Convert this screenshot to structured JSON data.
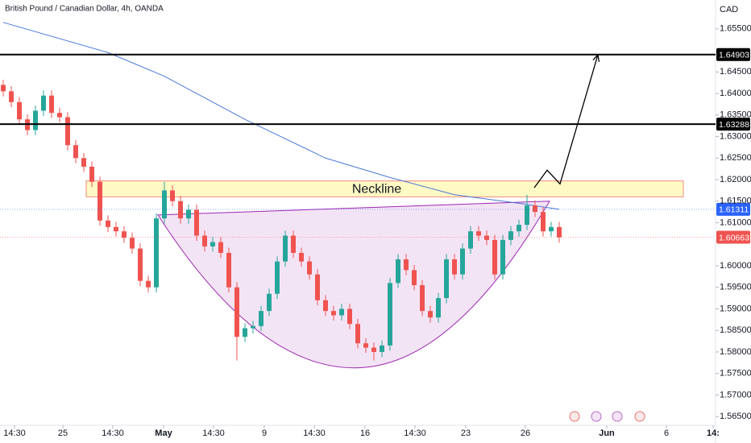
{
  "chart_data": {
    "type": "candlestick",
    "title": "British Pound / Canadian Dollar, 4h, OANDA",
    "y_axis_label": "CAD",
    "up_color": "#26a69a",
    "down_color": "#ef5350",
    "grid": false,
    "ylim": [
      1.5626,
      1.6617
    ],
    "xlim": [
      -0.4,
      88.6
    ],
    "yticks": [
      {
        "value": 1.655,
        "label": "1.65500"
      },
      {
        "value": 1.645,
        "label": "1.64500"
      },
      {
        "value": 1.64,
        "label": "1.64000"
      },
      {
        "value": 1.635,
        "label": "1.63500"
      },
      {
        "value": 1.63,
        "label": "1.63000"
      },
      {
        "value": 1.625,
        "label": "1.62500"
      },
      {
        "value": 1.62,
        "label": "1.62000"
      },
      {
        "value": 1.615,
        "label": "1.61500"
      },
      {
        "value": 1.61,
        "label": "1.61000"
      },
      {
        "value": 1.6,
        "label": "1.60000"
      },
      {
        "value": 1.595,
        "label": "1.59500"
      },
      {
        "value": 1.59,
        "label": "1.59000"
      },
      {
        "value": 1.585,
        "label": "1.58500"
      },
      {
        "value": 1.58,
        "label": "1.58000"
      },
      {
        "value": 1.575,
        "label": "1.57500"
      },
      {
        "value": 1.57,
        "label": "1.57000"
      },
      {
        "value": 1.565,
        "label": "1.56500"
      }
    ],
    "xticks": [
      {
        "value": 1.4,
        "label": "14:30"
      },
      {
        "value": 7.4,
        "label": "25"
      },
      {
        "value": 13.6,
        "label": "14:30"
      },
      {
        "value": 19.9,
        "label": "May"
      },
      {
        "value": 26.1,
        "label": "14:30"
      },
      {
        "value": 32.4,
        "label": "9"
      },
      {
        "value": 38.6,
        "label": "14:30"
      },
      {
        "value": 44.9,
        "label": "16"
      },
      {
        "value": 51.1,
        "label": "14:30"
      },
      {
        "value": 57.4,
        "label": "23"
      },
      {
        "value": 64.8,
        "label": "26"
      },
      {
        "value": 74.9,
        "label": "Jun"
      },
      {
        "value": 82.3,
        "label": "6"
      },
      {
        "value": 88.1,
        "label": "14:"
      }
    ],
    "open": [
      1.642,
      1.6405,
      1.638,
      1.634,
      1.6315,
      1.636,
      1.6395,
      1.6355,
      1.6345,
      1.628,
      1.625,
      1.623,
      1.6195,
      1.6105,
      1.609,
      1.608,
      1.6065,
      1.604,
      1.5965,
      1.595,
      1.611,
      1.6175,
      1.615,
      1.611,
      1.613,
      1.607,
      1.6045,
      1.6055,
      1.603,
      1.595,
      1.5835,
      1.5855,
      1.586,
      1.5895,
      1.5935,
      1.601,
      1.607,
      1.603,
      1.601,
      1.598,
      1.592,
      1.5895,
      1.5885,
      1.59,
      1.5865,
      1.582,
      1.581,
      1.58,
      1.5815,
      1.596,
      1.6015,
      1.599,
      1.5955,
      1.5895,
      1.588,
      1.5925,
      1.6015,
      1.598,
      1.604,
      1.608,
      1.607,
      1.606,
      1.598,
      1.606,
      1.608,
      1.6095,
      1.614,
      1.6125,
      1.608,
      1.609
    ],
    "high": [
      1.6432,
      1.6417,
      1.6392,
      1.6352,
      1.6372,
      1.6407,
      1.6407,
      1.6367,
      1.6357,
      1.6292,
      1.6262,
      1.6242,
      1.6207,
      1.6117,
      1.6102,
      1.6092,
      1.6077,
      1.6052,
      1.5977,
      1.6122,
      1.6195,
      1.6187,
      1.6162,
      1.6142,
      1.6142,
      1.6082,
      1.6067,
      1.6067,
      1.6042,
      1.5962,
      1.5867,
      1.5872,
      1.5907,
      1.5947,
      1.6022,
      1.6082,
      1.6082,
      1.6042,
      1.6022,
      1.5992,
      1.5932,
      1.5907,
      1.5912,
      1.5912,
      1.5877,
      1.5832,
      1.5822,
      1.5827,
      1.5972,
      1.6027,
      1.6027,
      1.6002,
      1.5967,
      1.5907,
      1.5937,
      1.6027,
      1.6027,
      1.6052,
      1.6092,
      1.6092,
      1.6082,
      1.6072,
      1.6072,
      1.6092,
      1.6107,
      1.6165,
      1.6152,
      1.6137,
      1.6102,
      1.6102
    ],
    "low": [
      1.6393,
      1.6368,
      1.6328,
      1.6303,
      1.6303,
      1.6348,
      1.6343,
      1.6333,
      1.6268,
      1.6238,
      1.6218,
      1.6183,
      1.6093,
      1.6078,
      1.6068,
      1.6053,
      1.6028,
      1.5953,
      1.5938,
      1.5938,
      1.6098,
      1.6138,
      1.6098,
      1.6098,
      1.6058,
      1.6033,
      1.6033,
      1.6018,
      1.5938,
      1.578,
      1.5823,
      1.5843,
      1.5848,
      1.5883,
      1.5923,
      1.5998,
      1.6018,
      1.5998,
      1.5968,
      1.5908,
      1.5883,
      1.5873,
      1.5873,
      1.5853,
      1.5808,
      1.5798,
      1.578,
      1.5788,
      1.5803,
      1.5948,
      1.5978,
      1.5943,
      1.5883,
      1.5868,
      1.5868,
      1.5913,
      1.5968,
      1.5968,
      1.6028,
      1.6058,
      1.6048,
      1.5968,
      1.5968,
      1.6048,
      1.6068,
      1.6083,
      1.6113,
      1.6068,
      1.6068,
      1.6054
    ],
    "close": [
      1.6405,
      1.638,
      1.634,
      1.6315,
      1.636,
      1.6395,
      1.6355,
      1.6345,
      1.628,
      1.625,
      1.623,
      1.6195,
      1.6105,
      1.609,
      1.608,
      1.6065,
      1.604,
      1.5965,
      1.595,
      1.611,
      1.6175,
      1.615,
      1.611,
      1.613,
      1.607,
      1.6045,
      1.6055,
      1.603,
      1.595,
      1.5835,
      1.5855,
      1.586,
      1.5895,
      1.5935,
      1.601,
      1.607,
      1.603,
      1.601,
      1.598,
      1.592,
      1.5895,
      1.5885,
      1.59,
      1.5865,
      1.582,
      1.581,
      1.58,
      1.5815,
      1.596,
      1.6015,
      1.599,
      1.5955,
      1.5895,
      1.588,
      1.5925,
      1.6015,
      1.598,
      1.604,
      1.608,
      1.607,
      1.606,
      1.598,
      1.606,
      1.608,
      1.6095,
      1.614,
      1.6125,
      1.608,
      1.609,
      1.6066
    ],
    "ma": {
      "color": "#4a78d8",
      "x": [
        0,
        13,
        20,
        30,
        40,
        48,
        56,
        64,
        69
      ],
      "values": [
        1.6565,
        1.6495,
        1.644,
        1.634,
        1.625,
        1.6205,
        1.6165,
        1.6145,
        1.6131
      ]
    },
    "levels": [
      {
        "value": 1.64903,
        "label": "1.64903",
        "color": "#000000",
        "line": true
      },
      {
        "value": 1.63288,
        "label": "1.63288",
        "color": "#000000",
        "line": true
      },
      {
        "value": 1.61311,
        "label": "1.61311",
        "color": "#2962ff",
        "line": false
      },
      {
        "value": 1.60663,
        "label": "1.60663",
        "color": "#ef5350",
        "line": false
      }
    ],
    "neckline": {
      "text": "Neckline",
      "x": [
        10.3,
        84.4
      ],
      "y": [
        1.6197,
        1.616
      ]
    },
    "cup": {
      "x": [
        19.2,
        43.6,
        67.8
      ],
      "y": [
        1.6118,
        1.5763,
        1.615
      ]
    },
    "projection": {
      "x": [
        65.9,
        67.5,
        69.1,
        73.8
      ],
      "y": [
        1.6181,
        1.6222,
        1.619,
        1.649
      ]
    }
  }
}
